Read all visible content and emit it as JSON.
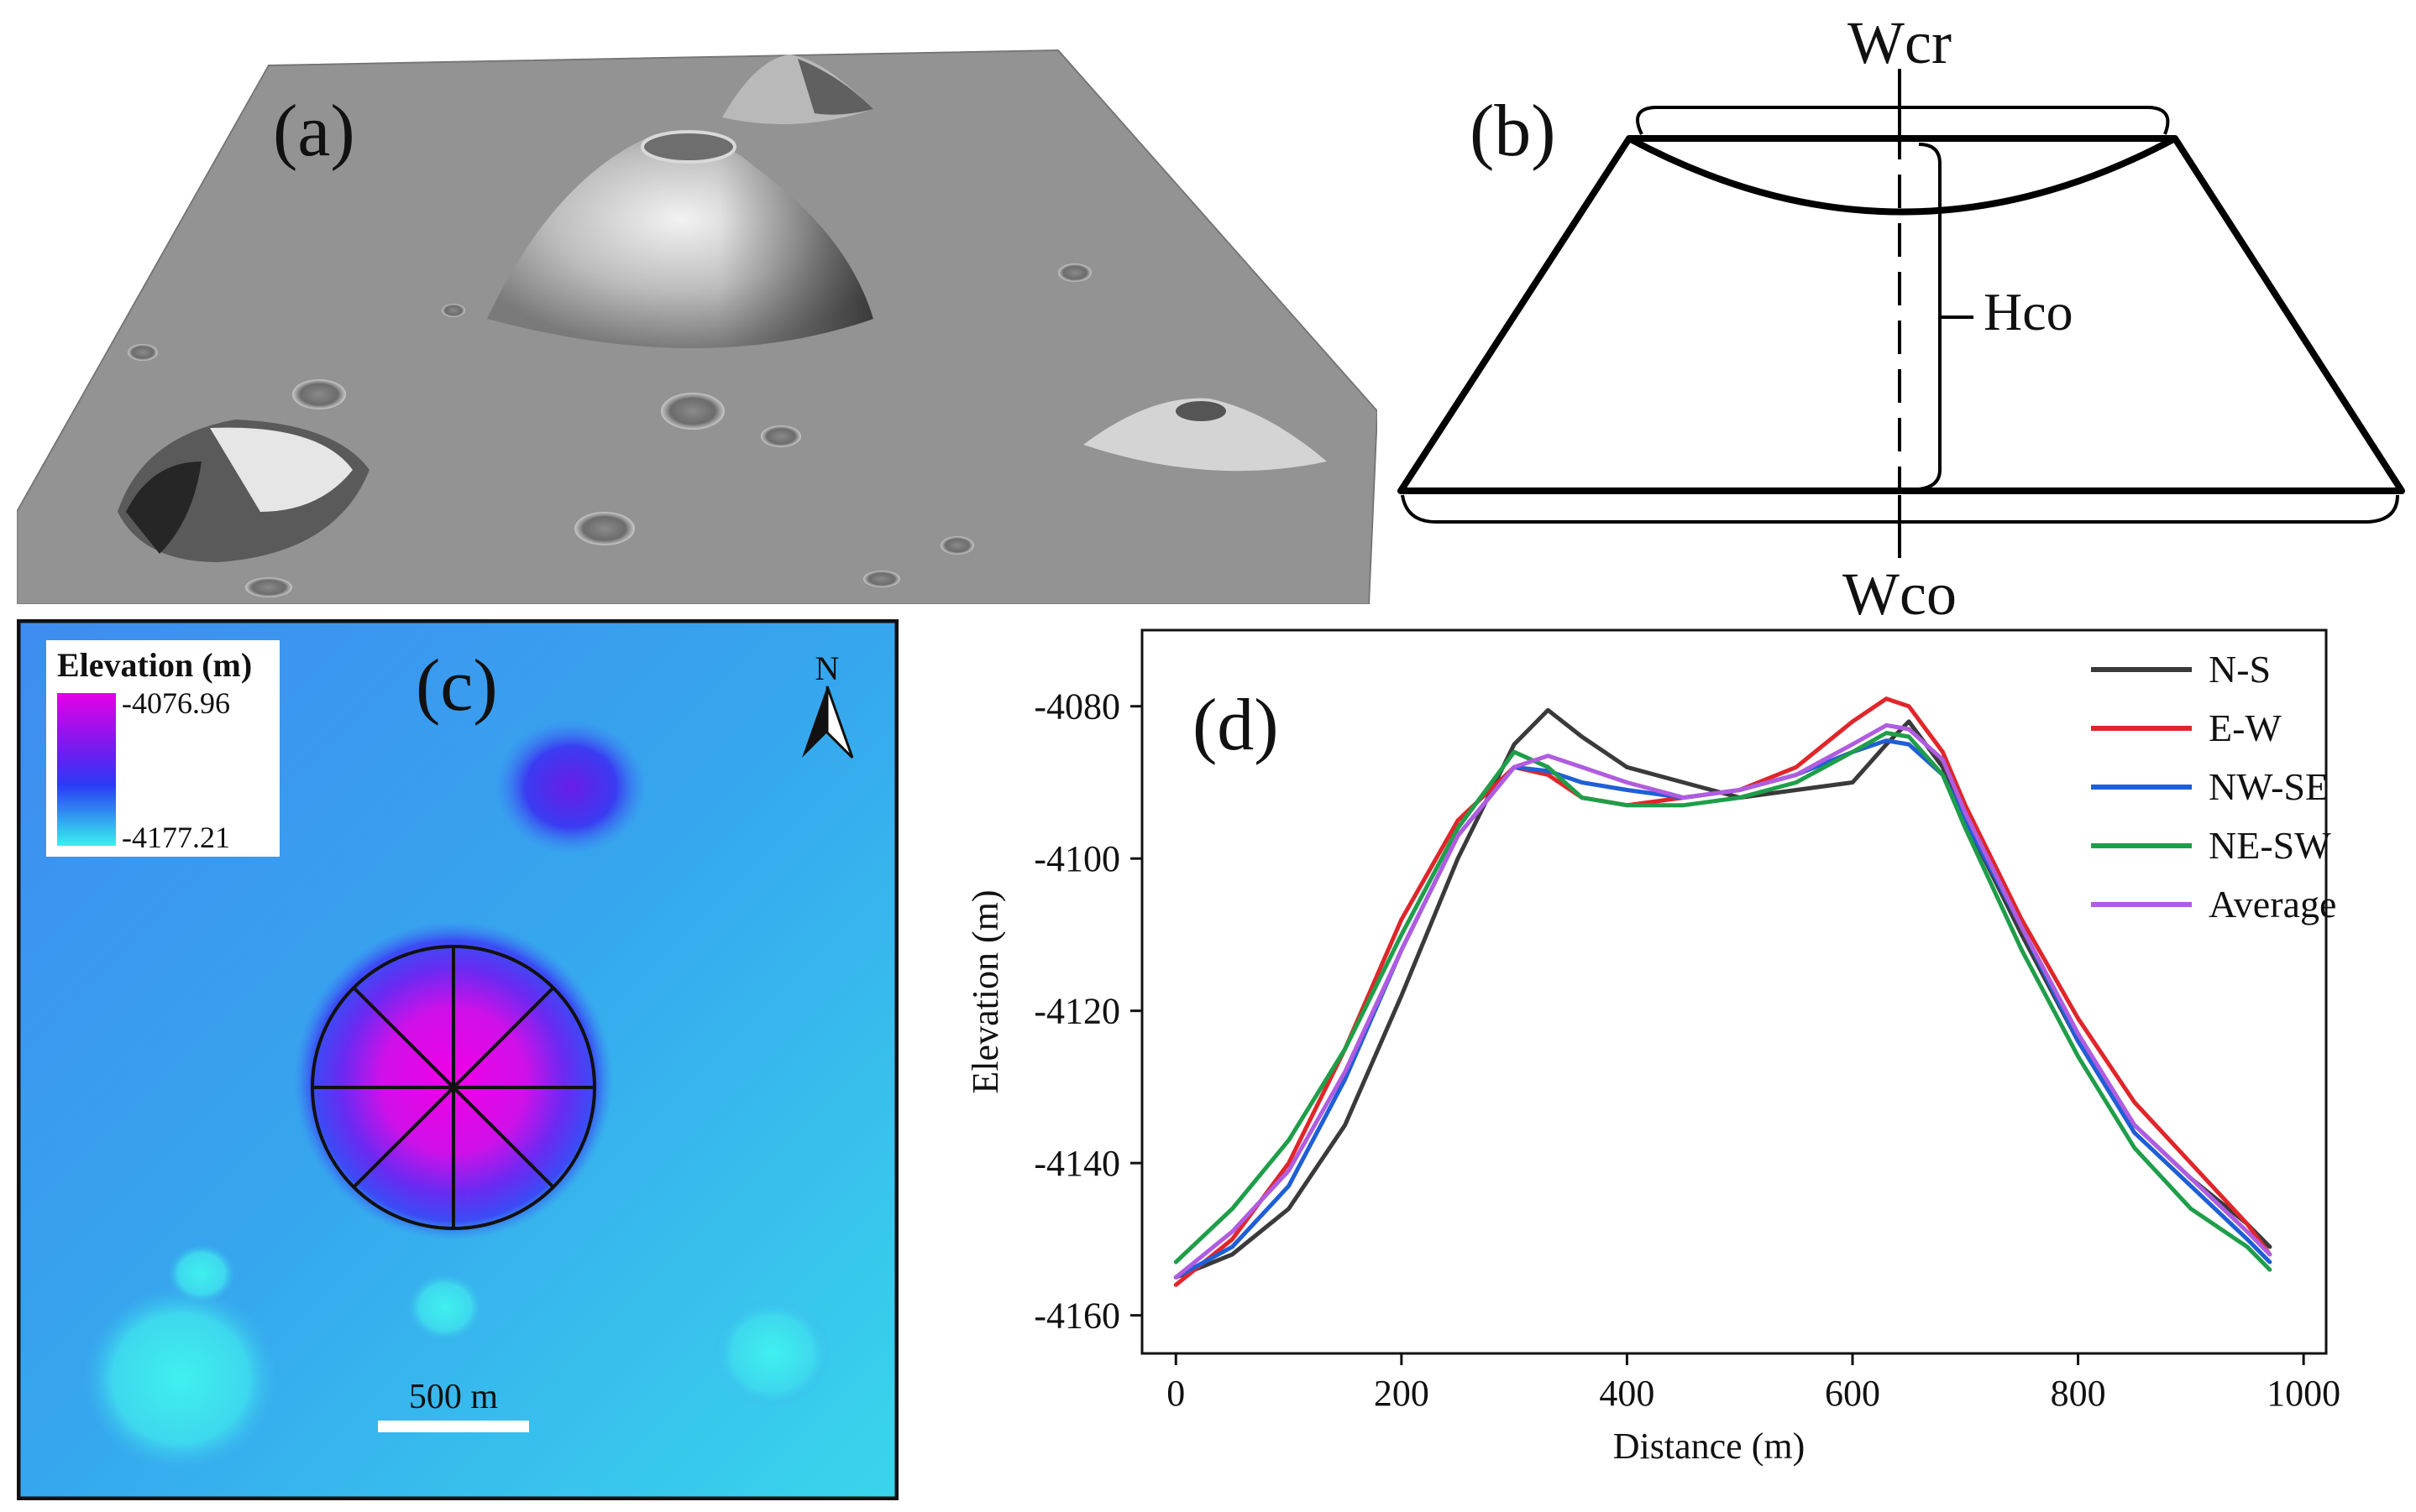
{
  "figure": {
    "panel_a": {
      "label": "(a)"
    },
    "panel_b": {
      "label": "(b)",
      "labels": {
        "wcr": "Wcr",
        "hco": "Hco",
        "wco": "Wco"
      }
    },
    "panel_c": {
      "label": "(c)",
      "legend": {
        "title": "Elevation (m)",
        "max": "-4076.96",
        "min": "-4177.21"
      },
      "north": "N",
      "scale_bar": "500 m",
      "colors": {
        "high": "#e600e6",
        "mid": "#3a3aff",
        "low": "#39e8ef"
      }
    },
    "panel_d": {
      "label": "(d)"
    }
  },
  "chart_data": {
    "type": "line",
    "title": "",
    "xlabel": "Distance (m)",
    "ylabel": "Elevation (m)",
    "xlim": [
      -30,
      1020
    ],
    "ylim": [
      -4165,
      -4070
    ],
    "xticks": [
      0,
      200,
      400,
      600,
      800,
      1000
    ],
    "yticks": [
      -4080,
      -4100,
      -4120,
      -4140,
      -4160
    ],
    "xtick_labels": [
      "0",
      "200",
      "400",
      "600",
      "800",
      "1000"
    ],
    "ytick_labels": [
      "-4080",
      "-4100",
      "-4120",
      "-4140",
      "-4160"
    ],
    "legend_position": "top-right",
    "series": [
      {
        "name": "N-S",
        "color": "#3a3a3a",
        "x": [
          0,
          50,
          100,
          150,
          200,
          250,
          300,
          330,
          360,
          400,
          450,
          500,
          550,
          600,
          630,
          650,
          680,
          700,
          750,
          800,
          850,
          900,
          950,
          970
        ],
        "y": [
          -4155,
          -4152,
          -4146,
          -4135,
          -4118,
          -4100,
          -4085,
          -4080.5,
          -4084,
          -4088,
          -4090,
          -4092,
          -4091,
          -4090,
          -4085,
          -4082,
          -4088,
          -4095,
          -4110,
          -4124,
          -4135,
          -4142,
          -4148,
          -4151
        ]
      },
      {
        "name": "E-W",
        "color": "#e0262a",
        "x": [
          0,
          50,
          100,
          150,
          200,
          250,
          300,
          330,
          360,
          400,
          450,
          500,
          550,
          600,
          630,
          650,
          680,
          700,
          750,
          800,
          850,
          900,
          950,
          970
        ],
        "y": [
          -4156,
          -4150,
          -4140,
          -4125,
          -4108,
          -4095,
          -4088,
          -4089,
          -4092,
          -4093,
          -4092,
          -4091,
          -4088,
          -4082,
          -4079,
          -4080,
          -4086,
          -4093,
          -4108,
          -4121,
          -4132,
          -4140,
          -4148,
          -4152
        ]
      },
      {
        "name": "NW-SE",
        "color": "#1f5fd6",
        "x": [
          0,
          50,
          100,
          150,
          200,
          250,
          300,
          330,
          360,
          400,
          450,
          500,
          550,
          600,
          630,
          650,
          680,
          700,
          750,
          800,
          850,
          900,
          950,
          970
        ],
        "y": [
          -4155,
          -4151,
          -4143,
          -4129,
          -4112,
          -4097,
          -4088,
          -4088.5,
          -4090,
          -4091,
          -4092,
          -4091,
          -4089,
          -4086,
          -4084.5,
          -4085,
          -4089,
          -4095,
          -4109,
          -4124,
          -4136,
          -4143,
          -4150,
          -4153
        ]
      },
      {
        "name": "NE-SW",
        "color": "#1f9e4a",
        "x": [
          0,
          50,
          100,
          150,
          200,
          250,
          300,
          330,
          360,
          400,
          450,
          500,
          550,
          600,
          630,
          650,
          680,
          700,
          750,
          800,
          850,
          900,
          950,
          970
        ],
        "y": [
          -4153,
          -4146,
          -4137,
          -4125,
          -4110,
          -4096,
          -4086,
          -4088,
          -4092,
          -4093,
          -4093,
          -4092,
          -4090,
          -4086,
          -4083.5,
          -4084,
          -4089,
          -4096,
          -4112,
          -4126,
          -4138,
          -4146,
          -4151,
          -4154
        ]
      },
      {
        "name": "Average",
        "color": "#b05ce0",
        "x": [
          0,
          50,
          100,
          150,
          200,
          250,
          300,
          330,
          360,
          400,
          450,
          500,
          550,
          600,
          630,
          650,
          680,
          700,
          750,
          800,
          850,
          900,
          950,
          970
        ],
        "y": [
          -4155,
          -4149,
          -4141,
          -4128,
          -4112,
          -4097,
          -4088,
          -4086.5,
          -4088,
          -4090,
          -4092,
          -4091,
          -4089,
          -4085,
          -4082.5,
          -4083,
          -4087,
          -4094,
          -4109,
          -4123,
          -4135,
          -4142,
          -4149,
          -4152
        ]
      }
    ]
  }
}
